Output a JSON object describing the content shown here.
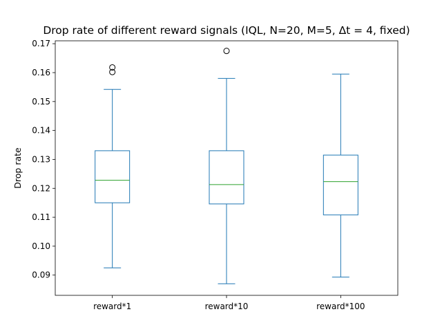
{
  "chart_data": {
    "type": "box",
    "title": "Drop rate of different reward signals (IQL, N=20, M=5, Δt = 4, fixed)",
    "xlabel": "",
    "ylabel": "Drop rate",
    "ylim": [
      0.083,
      0.171
    ],
    "yticks": [
      "0.09",
      "0.10",
      "0.11",
      "0.12",
      "0.13",
      "0.14",
      "0.15",
      "0.16",
      "0.17"
    ],
    "grid": false,
    "colors": {
      "box": "#1f77b4",
      "median": "#2ca02c",
      "axis": "#000000",
      "background": "#ffffff"
    },
    "categories": [
      "reward*1",
      "reward*10",
      "reward*100"
    ],
    "boxes": [
      {
        "label": "reward*1",
        "whisker_low": 0.0925,
        "q1": 0.115,
        "median": 0.1228,
        "q3": 0.133,
        "whisker_high": 0.1542,
        "outliers": [
          0.1602,
          0.1618
        ]
      },
      {
        "label": "reward*10",
        "whisker_low": 0.087,
        "q1": 0.1146,
        "median": 0.1213,
        "q3": 0.133,
        "whisker_high": 0.158,
        "outliers": [
          0.1675
        ]
      },
      {
        "label": "reward*100",
        "whisker_low": 0.0893,
        "q1": 0.1108,
        "median": 0.1223,
        "q3": 0.1315,
        "whisker_high": 0.1595,
        "outliers": []
      }
    ]
  }
}
